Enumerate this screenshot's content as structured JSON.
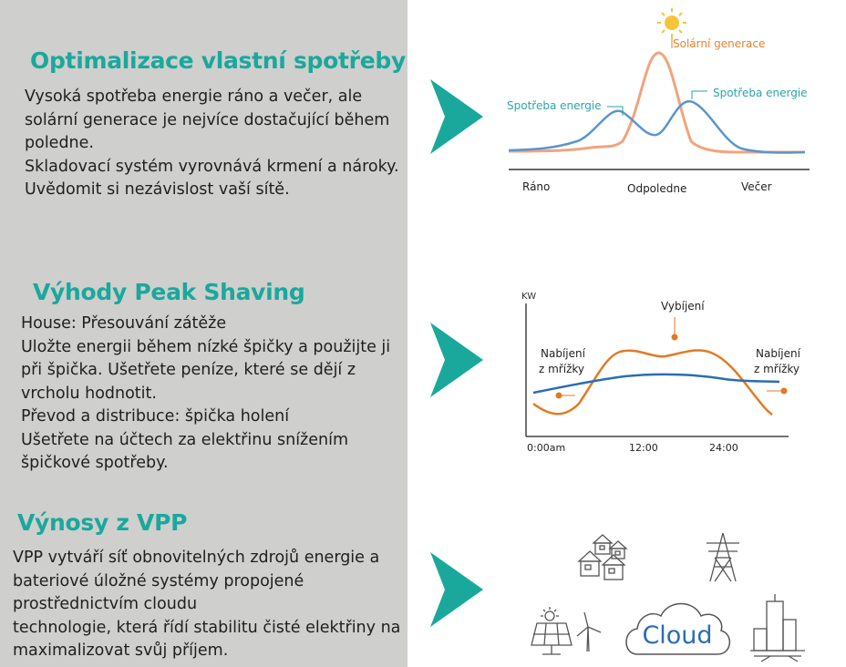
{
  "sections": [
    {
      "title": "Optimalizace vlastní spotřeby",
      "lines": [
        "Vysoká spotřeba energie ráno a večer, ale",
        "solární generace je nejvíce dostačující během",
        "poledne.",
        "Skladovací systém vyrovnává krmení a nároky.",
        "Uvědomit si nezávislost vaší sítě."
      ]
    },
    {
      "title": "Výhody Peak Shaving",
      "lines": [
        "House: Přesouvání zátěže",
        "Uložte energii během nízké špičky a použijte ji",
        "při špička. Ušetřete peníze, které se dějí z",
        "vrcholu hodnotit.",
        "Převod a distribuce: špička holení",
        "Ušetřete na účtech za elektřinu snížením",
        "špičkové spotřeby."
      ]
    },
    {
      "title": "Výnosy z VPP",
      "lines": [
        "VPP vytváří síť obnovitelných zdrojů energie a",
        "bateriové úložné systémy propojené",
        "prostřednictvím cloudu",
        "technologie, která řídí stabilitu čisté elektřiny na",
        "maximalizovat svůj příjem."
      ]
    }
  ],
  "diagram1": {
    "solar_label": "Solární generace",
    "consumption_label_left": "Spotřeba energie",
    "consumption_label_right": "Spotřeba energie",
    "x_labels": [
      "Ráno",
      "Odpoledne",
      "Večer"
    ]
  },
  "diagram2": {
    "y_label": "KW",
    "discharge_label": "Vybíjení",
    "charge_left_line1": "Nabíjení",
    "charge_left_line2": "z mřížky",
    "charge_right_line1": "Nabíjení",
    "charge_right_line2": "z mřížky",
    "x_ticks": [
      "0:00am",
      "12:00",
      "24:00"
    ]
  },
  "diagram3": {
    "cloud_label": "Cloud",
    "icons": [
      "houses-icon",
      "power-tower-icon",
      "solar-panel-icon",
      "wind-turbine-icon",
      "cloud-icon",
      "city-buildings-icon"
    ]
  },
  "colors": {
    "heading": "#1aa89c",
    "panel": "#cfcfcd",
    "arrow": "#1aa89c",
    "consumption_line": "#5b95cc",
    "solar_line": "#f1a47e",
    "orange_line": "#e07a24",
    "blue_line": "#2a6db5",
    "teal_label": "#2aa6a6",
    "orange_label": "#e8822e"
  }
}
